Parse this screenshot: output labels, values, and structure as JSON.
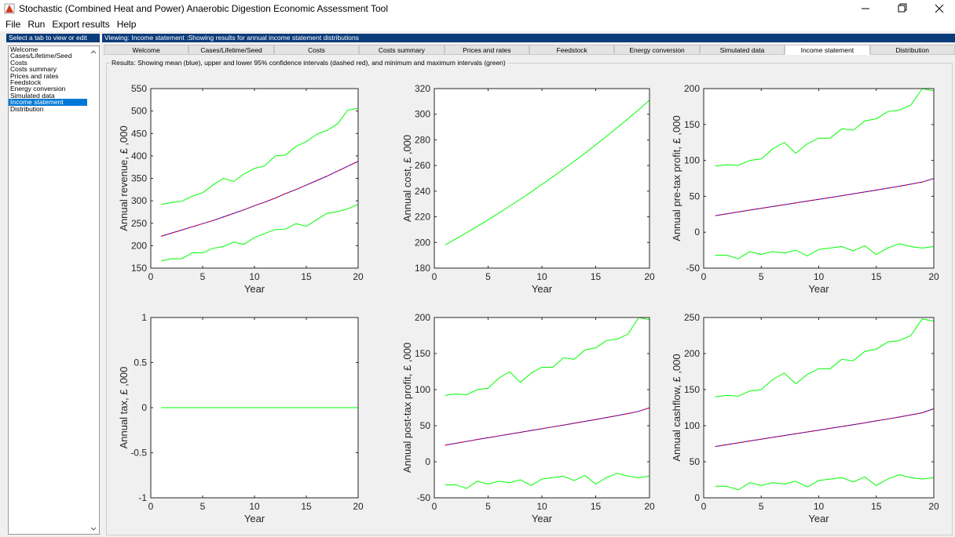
{
  "window": {
    "title": "Stochastic (Combined Heat and Power) Anaerobic Digestion Economic Assessment Tool"
  },
  "menu": [
    "File",
    "Run",
    "Export results",
    "Help"
  ],
  "sidebar": {
    "header": "Select a tab to view or edit",
    "items": [
      "Welcome",
      "Cases/Lifetime/Seed",
      "Costs",
      "Costs summary",
      "Prices and rates",
      "Feedstock",
      "Energy conversion",
      "Simulated data",
      "Income statement",
      "Distribution"
    ],
    "selected": 8
  },
  "main": {
    "header": "Viewing: Income statement :Showing results for annual income statement distributions",
    "tabs": [
      "Welcome",
      "Cases/Lifetime/Seed",
      "Costs",
      "Costs summary",
      "Prices and rates",
      "Feedstock",
      "Energy conversion",
      "Simulated data",
      "Income statement",
      "Distribution"
    ],
    "active_tab": 8,
    "results_label": "Results: Showing mean (blue), upper and lower 95% confidence intervals (dashed red), and minimum and maximum intervals (green)"
  },
  "chart_data": [
    {
      "type": "line",
      "xlabel": "Year",
      "ylabel": "Annual revenue, £ ,000",
      "x": [
        1,
        2,
        3,
        4,
        5,
        6,
        7,
        8,
        9,
        10,
        11,
        12,
        13,
        14,
        15,
        16,
        17,
        18,
        19,
        20
      ],
      "xlim": [
        0,
        20
      ],
      "xticks": [
        0,
        5,
        10,
        15,
        20
      ],
      "ylim": [
        150,
        550
      ],
      "yticks": [
        150,
        200,
        250,
        300,
        350,
        400,
        450,
        500,
        550
      ],
      "series": [
        {
          "color": "#00ff00",
          "values": [
            292,
            296,
            299,
            310,
            318,
            335,
            350,
            343,
            360,
            372,
            378,
            400,
            402,
            421,
            432,
            448,
            457,
            471,
            502,
            506
          ]
        },
        {
          "color": "#00ff00",
          "values": [
            166,
            171,
            171,
            184,
            184,
            194,
            198,
            208,
            203,
            218,
            227,
            236,
            237,
            249,
            243,
            258,
            272,
            276,
            282,
            292
          ]
        },
        {
          "color": "#0000ff",
          "values": [
            221,
            228,
            235,
            242,
            249,
            256,
            264,
            272,
            280,
            289,
            297,
            306,
            316,
            325,
            335,
            345,
            355,
            366,
            377,
            388
          ]
        },
        {
          "color": "#ff0000",
          "dashed": true,
          "values": [
            221,
            228,
            235,
            242,
            249,
            256,
            264,
            272,
            280,
            289,
            297,
            306,
            316,
            325,
            335,
            345,
            355,
            366,
            377,
            388
          ]
        }
      ]
    },
    {
      "type": "line",
      "xlabel": "Year",
      "ylabel": "Annual cost, £ ,000",
      "x": [
        1,
        2,
        3,
        4,
        5,
        6,
        7,
        8,
        9,
        10,
        11,
        12,
        13,
        14,
        15,
        16,
        17,
        18,
        19,
        20
      ],
      "xlim": [
        0,
        20
      ],
      "xticks": [
        0,
        5,
        10,
        15,
        20
      ],
      "ylim": [
        180,
        320
      ],
      "yticks": [
        180,
        200,
        220,
        240,
        260,
        280,
        300,
        320
      ],
      "series": [
        {
          "color": "#00ff00",
          "values": [
            198,
            202.8,
            207.6,
            212.6,
            217.7,
            223,
            228.3,
            233.8,
            239.4,
            245.2,
            251.1,
            257.1,
            263.3,
            269.6,
            276.1,
            282.8,
            289.6,
            296.5,
            303.6,
            311
          ]
        }
      ]
    },
    {
      "type": "line",
      "xlabel": "Year",
      "ylabel": "Annual pre-tax profit, £ ,000",
      "x": [
        1,
        2,
        3,
        4,
        5,
        6,
        7,
        8,
        9,
        10,
        11,
        12,
        13,
        14,
        15,
        16,
        17,
        18,
        19,
        20
      ],
      "xlim": [
        0,
        20
      ],
      "xticks": [
        0,
        5,
        10,
        15,
        20
      ],
      "ylim": [
        -50,
        200
      ],
      "yticks": [
        -50,
        0,
        50,
        100,
        150,
        200
      ],
      "series": [
        {
          "color": "#00ff00",
          "values": [
            92,
            94,
            93,
            100,
            102,
            116,
            125,
            110,
            123,
            131,
            131,
            144,
            142,
            155,
            158,
            168,
            170,
            177,
            200,
            197
          ]
        },
        {
          "color": "#00ff00",
          "values": [
            -32,
            -32,
            -37,
            -27,
            -31,
            -27,
            -29,
            -25,
            -33,
            -24,
            -22,
            -20,
            -26,
            -19,
            -31,
            -22,
            -16,
            -20,
            -22,
            -20
          ]
        },
        {
          "color": "#0000ff",
          "values": [
            23,
            25.6,
            28.2,
            30.8,
            33.3,
            35.8,
            38.3,
            40.8,
            43.3,
            45.8,
            48.3,
            50.8,
            53.4,
            56,
            58.6,
            61.3,
            64,
            66.9,
            69.9,
            74.8
          ]
        },
        {
          "color": "#ff0000",
          "dashed": true,
          "values": [
            23,
            25.6,
            28.2,
            30.8,
            33.3,
            35.8,
            38.3,
            40.8,
            43.3,
            45.8,
            48.3,
            50.8,
            53.4,
            56,
            58.6,
            61.3,
            64,
            66.9,
            69.9,
            74.8
          ]
        }
      ]
    },
    {
      "type": "line",
      "xlabel": "Year",
      "ylabel": "Annual tax, £ ,000",
      "x": [
        1,
        2,
        3,
        4,
        5,
        6,
        7,
        8,
        9,
        10,
        11,
        12,
        13,
        14,
        15,
        16,
        17,
        18,
        19,
        20
      ],
      "xlim": [
        0,
        20
      ],
      "xticks": [
        0,
        5,
        10,
        15,
        20
      ],
      "ylim": [
        -1,
        1
      ],
      "yticks": [
        -1,
        -0.5,
        0,
        0.5,
        1
      ],
      "series": [
        {
          "color": "#00ff00",
          "values": [
            0,
            0,
            0,
            0,
            0,
            0,
            0,
            0,
            0,
            0,
            0,
            0,
            0,
            0,
            0,
            0,
            0,
            0,
            0,
            0
          ]
        }
      ]
    },
    {
      "type": "line",
      "xlabel": "Year",
      "ylabel": "Annual post-tax profit, £ ,000",
      "x": [
        1,
        2,
        3,
        4,
        5,
        6,
        7,
        8,
        9,
        10,
        11,
        12,
        13,
        14,
        15,
        16,
        17,
        18,
        19,
        20
      ],
      "xlim": [
        0,
        20
      ],
      "xticks": [
        0,
        5,
        10,
        15,
        20
      ],
      "ylim": [
        -50,
        200
      ],
      "yticks": [
        -50,
        0,
        50,
        100,
        150,
        200
      ],
      "series": [
        {
          "color": "#00ff00",
          "values": [
            92,
            94,
            93,
            100,
            102,
            116,
            125,
            110,
            123,
            131,
            131,
            144,
            142,
            155,
            158,
            168,
            170,
            177,
            200,
            197
          ]
        },
        {
          "color": "#00ff00",
          "values": [
            -32,
            -32,
            -37,
            -27,
            -31,
            -27,
            -29,
            -25,
            -33,
            -24,
            -22,
            -20,
            -26,
            -19,
            -31,
            -22,
            -16,
            -20,
            -22,
            -20
          ]
        },
        {
          "color": "#0000ff",
          "values": [
            23,
            25.6,
            28.2,
            30.8,
            33.3,
            35.8,
            38.3,
            40.8,
            43.3,
            45.8,
            48.3,
            50.8,
            53.4,
            56,
            58.6,
            61.3,
            64,
            66.9,
            69.9,
            74.8
          ]
        },
        {
          "color": "#ff0000",
          "dashed": true,
          "values": [
            23,
            25.6,
            28.2,
            30.8,
            33.3,
            35.8,
            38.3,
            40.8,
            43.3,
            45.8,
            48.3,
            50.8,
            53.4,
            56,
            58.6,
            61.3,
            64,
            66.9,
            69.9,
            74.8
          ]
        }
      ]
    },
    {
      "type": "line",
      "xlabel": "Year",
      "ylabel": "Annual cashflow, £ ,000",
      "x": [
        1,
        2,
        3,
        4,
        5,
        6,
        7,
        8,
        9,
        10,
        11,
        12,
        13,
        14,
        15,
        16,
        17,
        18,
        19,
        20
      ],
      "xlim": [
        0,
        20
      ],
      "xticks": [
        0,
        5,
        10,
        15,
        20
      ],
      "ylim": [
        0,
        250
      ],
      "yticks": [
        0,
        50,
        100,
        150,
        200,
        250
      ],
      "series": [
        {
          "color": "#00ff00",
          "values": [
            140,
            142,
            141,
            148,
            150,
            164,
            173,
            158,
            171,
            179,
            179,
            192,
            190,
            203,
            206,
            216,
            218,
            225,
            248,
            245
          ]
        },
        {
          "color": "#00ff00",
          "values": [
            16,
            16,
            11,
            21,
            17,
            21,
            19,
            23,
            15,
            24,
            26,
            28,
            22,
            29,
            17,
            26,
            32,
            28,
            26,
            28
          ]
        },
        {
          "color": "#0000ff",
          "values": [
            71,
            73.6,
            76.2,
            78.8,
            81.3,
            83.8,
            86.3,
            88.8,
            91.3,
            93.8,
            96.3,
            98.8,
            101.4,
            104,
            106.6,
            109.3,
            112,
            114.9,
            117.9,
            123.5
          ]
        },
        {
          "color": "#ff0000",
          "dashed": true,
          "values": [
            71,
            73.6,
            76.2,
            78.8,
            81.3,
            83.8,
            86.3,
            88.8,
            91.3,
            93.8,
            96.3,
            98.8,
            101.4,
            104,
            106.6,
            109.3,
            112,
            114.9,
            117.9,
            123.5
          ]
        }
      ]
    }
  ]
}
